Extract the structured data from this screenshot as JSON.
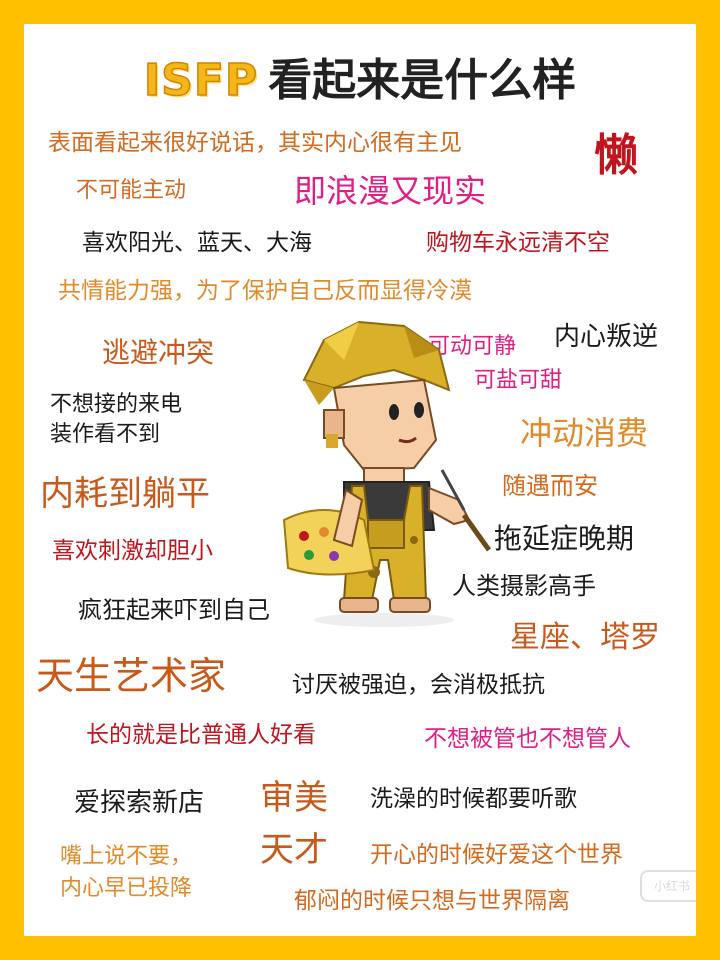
{
  "title": {
    "type": "ISFP",
    "rest": "看起来是什么样"
  },
  "phrases": {
    "p01": "表面看起来很好说话，其实内心很有主见",
    "p02": "懒",
    "p03": "不可能主动",
    "p04": "即浪漫又现实",
    "p05": "喜欢阳光、蓝天、大海",
    "p06": "购物车永远清不空",
    "p07": "共情能力强，为了保护自己反而显得冷漠",
    "p08": "逃避冲突",
    "p09": "可动可静",
    "p10": "内心叛逆",
    "p11": "可盐可甜",
    "p12a": "不想接的来电",
    "p12b": "装作看不到",
    "p13": "冲动消费",
    "p14": "内耗到躺平",
    "p15": "随遇而安",
    "p16": "拖延症晚期",
    "p17": "喜欢刺激却胆小",
    "p18": "人类摄影高手",
    "p19": "疯狂起来吓到自己",
    "p20": "星座、塔罗",
    "p21": "天生艺术家",
    "p22": "讨厌被强迫，会消极抵抗",
    "p23": "长的就是比普通人好看",
    "p24": "不想被管也不想管人",
    "p25": "爱探索新店",
    "p26a": "审美",
    "p26b": "天才",
    "p27": "洗澡的时候都要听歌",
    "p28a": "嘴上说不要，",
    "p28b": "内心早已投降",
    "p29": "开心的时候好爱这个世界",
    "p30": "郁闷的时候只想与世界隔离"
  },
  "colors": {
    "border": "#ffc000",
    "orange": "#d36a1e",
    "pink": "#e01e86",
    "red": "#c0141e",
    "black": "#1b1b1b"
  },
  "icons": {
    "mascot": "artist-with-palette-illustration"
  },
  "watermark": "小红书"
}
